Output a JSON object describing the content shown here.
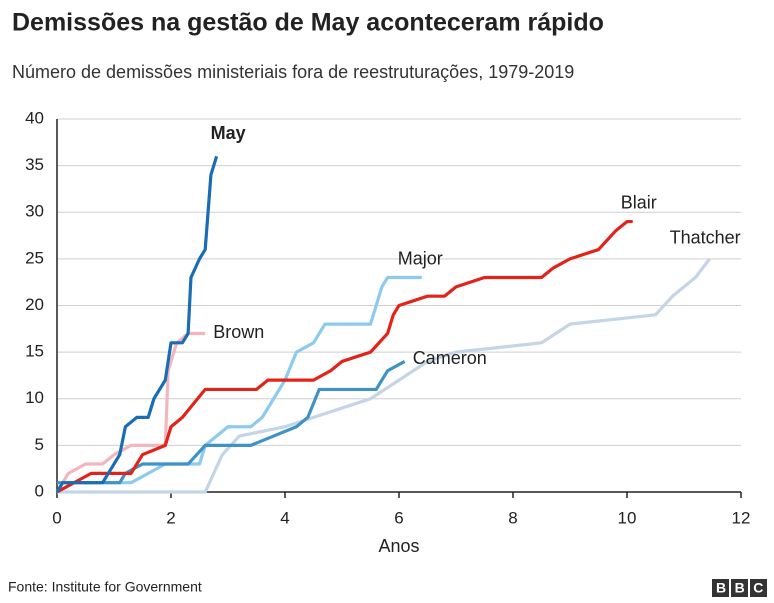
{
  "chart_data": {
    "type": "line",
    "title": "Demissões na gestão de May aconteceram rápido",
    "subtitle": "Número de demissões ministeriais fora de reestruturações, 1979-2019",
    "x_label": "Anos",
    "source": "Fonte: Institute for Government",
    "logo": "BBC",
    "xlim": [
      0,
      12
    ],
    "xticks": [
      0,
      2,
      4,
      6,
      8,
      10,
      12
    ],
    "ylim": [
      0,
      40
    ],
    "yticks": [
      0,
      5,
      10,
      15,
      20,
      25,
      30,
      35,
      40
    ],
    "grid": true,
    "series": [
      {
        "name": "Thatcher",
        "color": "#c3d5e6",
        "x": [
          0,
          2.6,
          2.9,
          3.2,
          4.0,
          4.5,
          5.0,
          5.5,
          6.0,
          6.5,
          7.0,
          8.5,
          9.0,
          10.5,
          10.8,
          11.2,
          11.45
        ],
        "values": [
          0,
          0,
          4,
          6,
          7,
          8,
          9,
          10,
          12,
          14,
          15,
          16,
          18,
          19,
          21,
          23,
          25
        ]
      },
      {
        "name": "Brown",
        "color": "#f3b6bf",
        "x": [
          0,
          0.2,
          0.5,
          0.8,
          1.0,
          1.3,
          1.9,
          1.95,
          2.1,
          2.3,
          2.6
        ],
        "values": [
          0,
          2,
          3,
          3,
          4,
          5,
          5,
          13,
          16,
          17,
          17
        ]
      },
      {
        "name": "Major",
        "color": "#8ccaee",
        "x": [
          0,
          0.3,
          1.3,
          1.6,
          1.9,
          2.5,
          2.6,
          3.0,
          3.4,
          3.6,
          3.8,
          4.0,
          4.2,
          4.5,
          4.7,
          5.5,
          5.7,
          5.8,
          6.4
        ],
        "values": [
          0,
          1,
          1,
          2,
          3,
          3,
          5,
          7,
          7,
          8,
          10,
          12,
          15,
          16,
          18,
          18,
          22,
          23,
          23
        ]
      },
      {
        "name": "Cameron",
        "color": "#3f92c6",
        "x": [
          0,
          1.1,
          1.2,
          1.5,
          2.3,
          2.6,
          3.4,
          3.8,
          4.2,
          4.4,
          4.6,
          5.6,
          5.7,
          5.8,
          6.1
        ],
        "values": [
          1,
          1,
          2,
          3,
          3,
          5,
          5,
          6,
          7,
          8,
          11,
          11,
          12,
          13,
          14
        ]
      },
      {
        "name": "Blair",
        "color": "#e2231a",
        "x": [
          0,
          0.6,
          1.3,
          1.5,
          1.9,
          2.0,
          2.2,
          2.6,
          3.5,
          3.7,
          4.5,
          4.8,
          5.0,
          5.5,
          5.8,
          5.9,
          6.0,
          6.5,
          6.8,
          7.0,
          7.5,
          8.5,
          8.7,
          9.0,
          9.5,
          9.8,
          10.0,
          10.1
        ],
        "values": [
          0,
          2,
          2,
          4,
          5,
          7,
          8,
          11,
          11,
          12,
          12,
          13,
          14,
          15,
          17,
          19,
          20,
          21,
          21,
          22,
          23,
          23,
          24,
          25,
          26,
          28,
          29,
          29
        ]
      },
      {
        "name": "May",
        "color": "#1a6db5",
        "x": [
          0,
          0.1,
          0.8,
          1.0,
          1.1,
          1.2,
          1.4,
          1.6,
          1.7,
          1.9,
          2.0,
          2.2,
          2.3,
          2.35,
          2.5,
          2.6,
          2.7,
          2.8
        ],
        "values": [
          0,
          1,
          1,
          3,
          4,
          7,
          8,
          8,
          10,
          12,
          16,
          16,
          17,
          23,
          25,
          26,
          34,
          36
        ]
      }
    ]
  }
}
